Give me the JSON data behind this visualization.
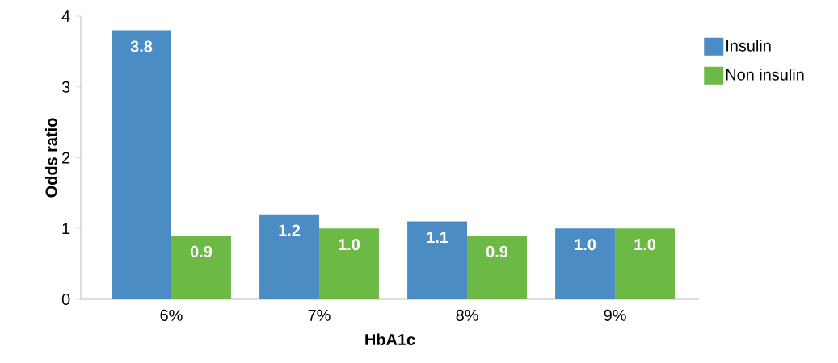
{
  "chart_data": {
    "type": "bar",
    "xlabel": "HbA1c",
    "ylabel": "Odds ratio",
    "categories": [
      "6%",
      "7%",
      "8%",
      "9%"
    ],
    "series": [
      {
        "name": "Insulin",
        "color": "#4a8cc3",
        "values": [
          3.8,
          1.2,
          1.1,
          1.0
        ],
        "value_labels": [
          "3.8",
          "1.2",
          "1.1",
          "1.0"
        ]
      },
      {
        "name": "Non insulin",
        "color": "#6cba45",
        "values": [
          0.9,
          1.0,
          0.9,
          1.0
        ],
        "value_labels": [
          "0.9",
          "1.0",
          "0.9",
          "1.0"
        ]
      }
    ],
    "ylim": [
      0,
      4
    ],
    "yticks": [
      0,
      1,
      2,
      3,
      4
    ],
    "legend": "top right"
  }
}
